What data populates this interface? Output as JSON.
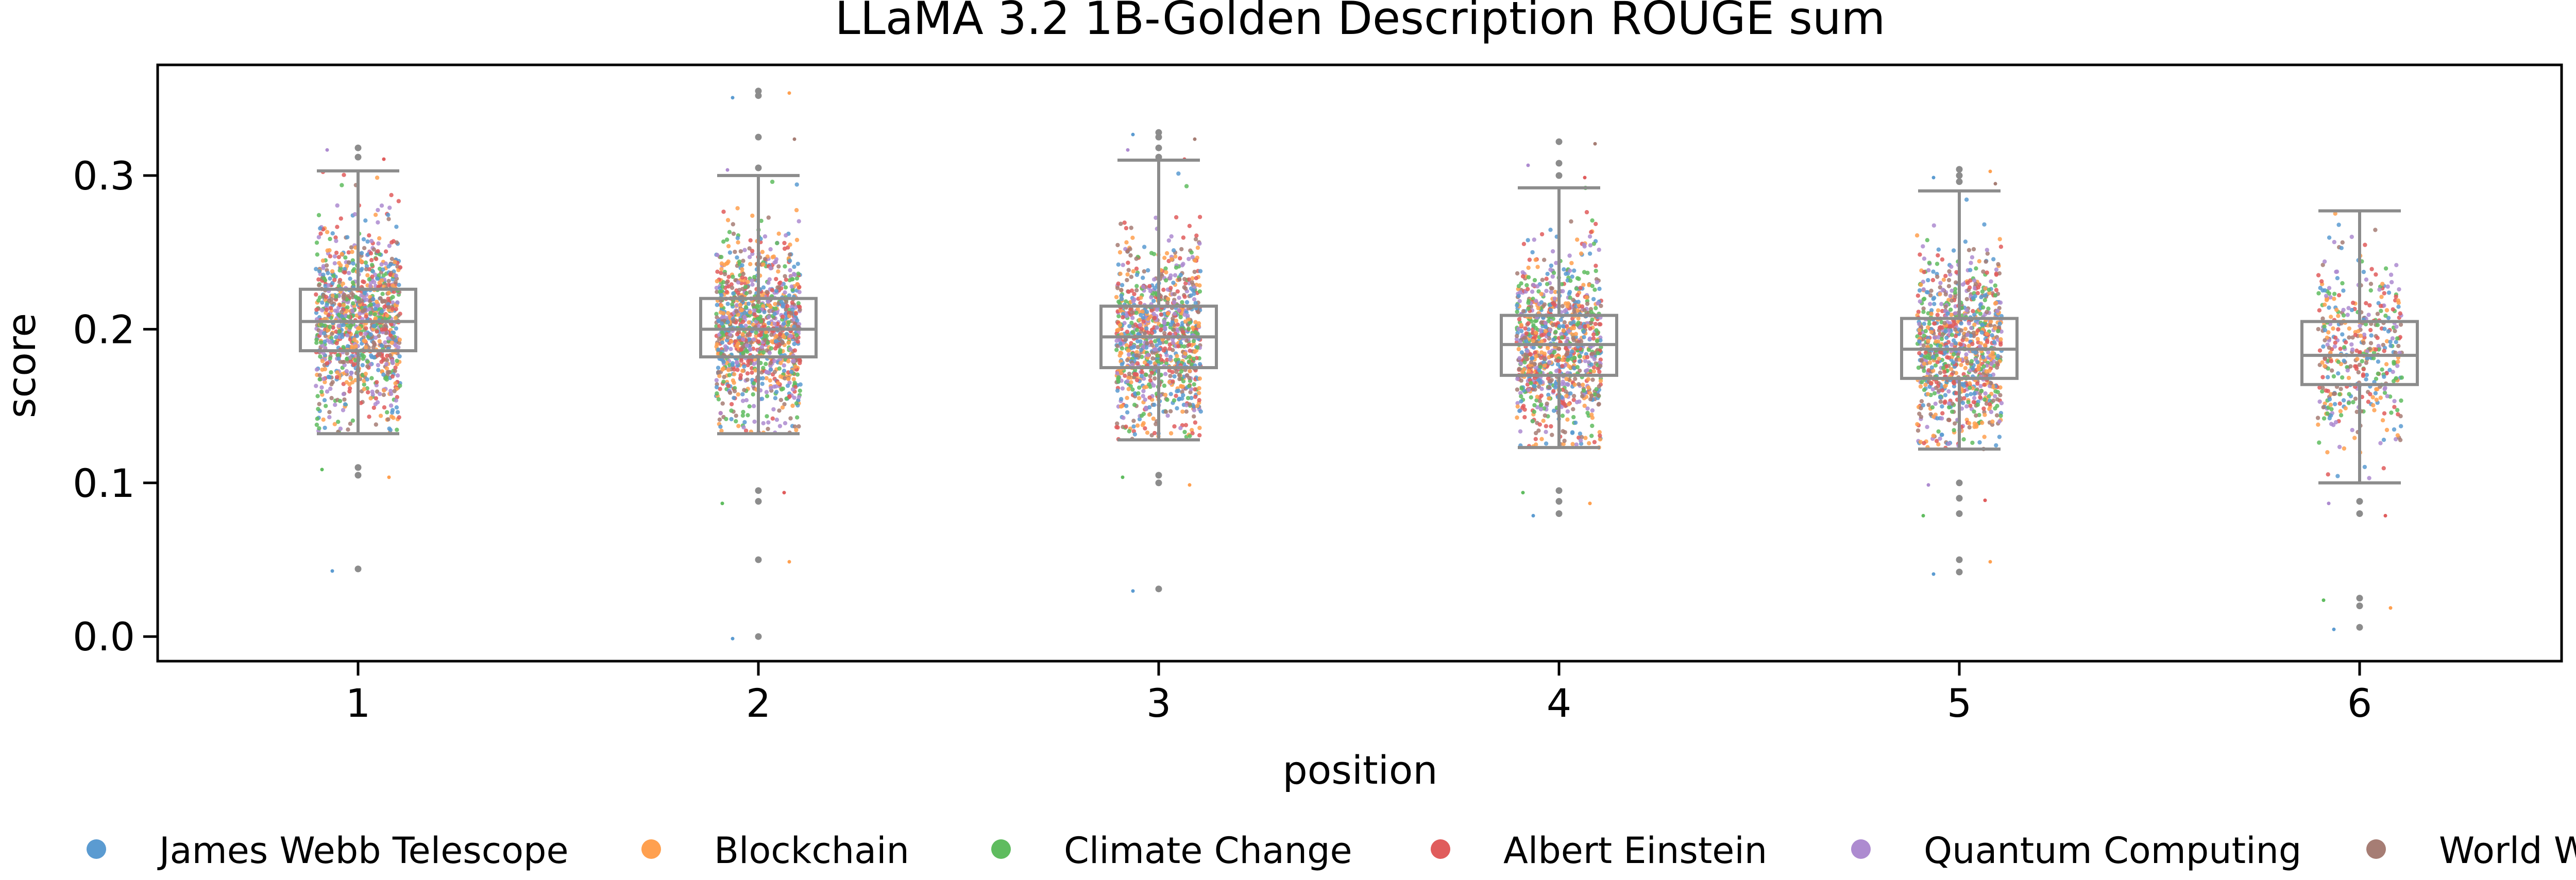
{
  "chart_data": {
    "type": "box",
    "title": "LLaMA 3.2 1B-Golden Description ROUGE sum",
    "xlabel": "position",
    "ylabel": "score",
    "ylim": [
      -0.016,
      0.372
    ],
    "yticks": [
      "0.0",
      "0.1",
      "0.2",
      "0.3"
    ],
    "categories": [
      "1",
      "2",
      "3",
      "4",
      "5",
      "6"
    ],
    "boxes": [
      {
        "position": "1",
        "whisker_low": 0.132,
        "q1": 0.186,
        "median": 0.205,
        "q3": 0.226,
        "whisker_high": 0.303
      },
      {
        "position": "2",
        "whisker_low": 0.132,
        "q1": 0.182,
        "median": 0.2,
        "q3": 0.22,
        "whisker_high": 0.3
      },
      {
        "position": "3",
        "whisker_low": 0.128,
        "q1": 0.175,
        "median": 0.195,
        "q3": 0.215,
        "whisker_high": 0.31
      },
      {
        "position": "4",
        "whisker_low": 0.123,
        "q1": 0.17,
        "median": 0.19,
        "q3": 0.209,
        "whisker_high": 0.292
      },
      {
        "position": "5",
        "whisker_low": 0.122,
        "q1": 0.168,
        "median": 0.187,
        "q3": 0.207,
        "whisker_high": 0.29
      },
      {
        "position": "6",
        "whisker_low": 0.1,
        "q1": 0.164,
        "median": 0.183,
        "q3": 0.205,
        "whisker_high": 0.277
      }
    ],
    "outliers": [
      {
        "position": "1",
        "values": [
          0.044,
          0.105,
          0.11,
          0.312,
          0.318
        ]
      },
      {
        "position": "2",
        "values": [
          0.0,
          0.05,
          0.088,
          0.095,
          0.305,
          0.325,
          0.352,
          0.355
        ]
      },
      {
        "position": "3",
        "values": [
          0.031,
          0.1,
          0.105,
          0.312,
          0.318,
          0.325,
          0.328
        ]
      },
      {
        "position": "4",
        "values": [
          0.08,
          0.088,
          0.095,
          0.3,
          0.308,
          0.322
        ]
      },
      {
        "position": "5",
        "values": [
          0.042,
          0.05,
          0.08,
          0.09,
          0.1,
          0.296,
          0.3,
          0.304
        ]
      },
      {
        "position": "6",
        "values": [
          0.006,
          0.02,
          0.025,
          0.08,
          0.088
        ]
      }
    ],
    "series": [
      {
        "name": "James Webb Telescope",
        "color": "#5b9bd1"
      },
      {
        "name": "Blockchain",
        "color": "#ffa04f"
      },
      {
        "name": "Climate Change",
        "color": "#5fbc5f"
      },
      {
        "name": "Albert Einstein",
        "color": "#e05c5c"
      },
      {
        "name": "Quantum Computing",
        "color": "#ad8bd0"
      },
      {
        "name": "World War II",
        "color": "#a67d74"
      }
    ],
    "box_color": "#8c8c8c",
    "grid": false,
    "legend_placement": "bottom"
  }
}
